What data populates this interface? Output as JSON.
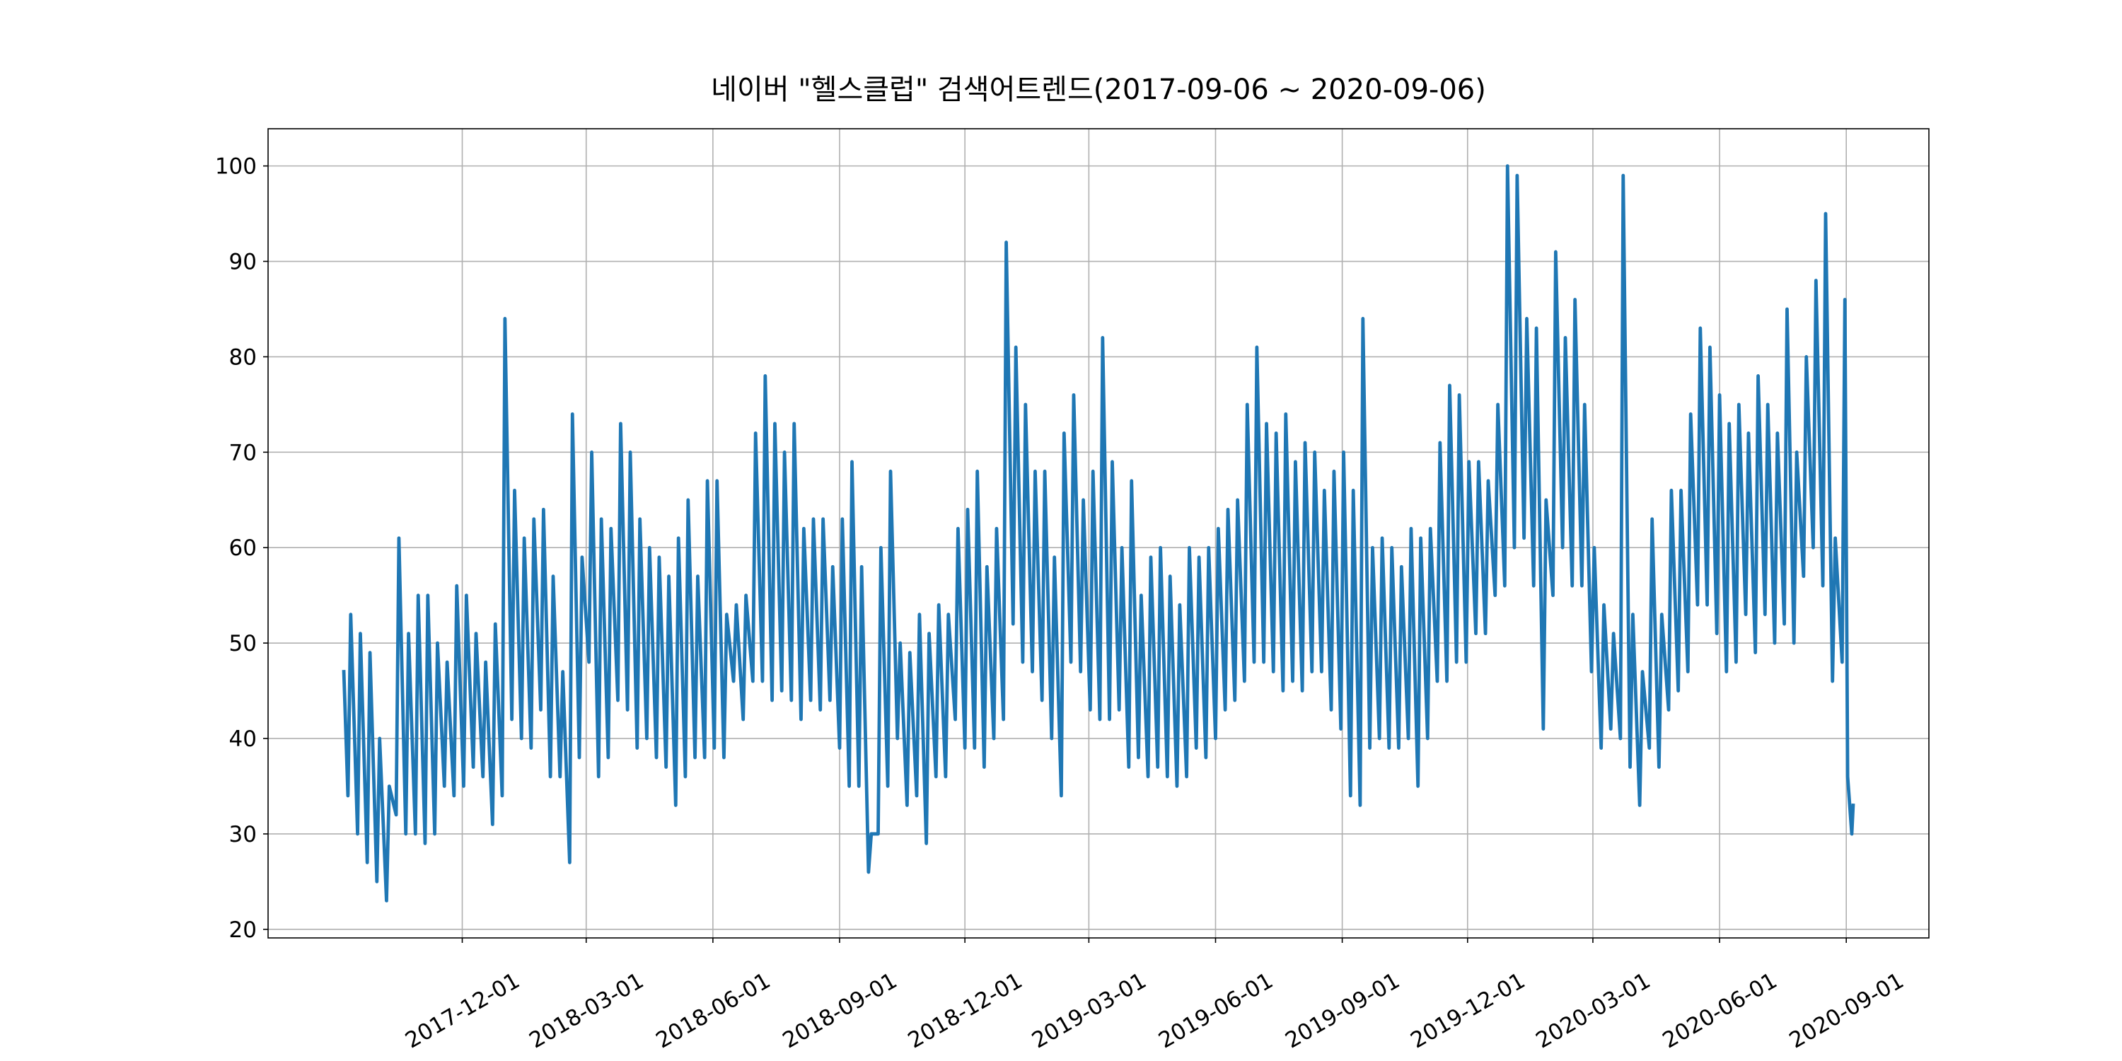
{
  "chart_data": {
    "type": "line",
    "title": "네이버 \"헬스클럽\" 검색어트렌드(2017-09-06 ~ 2020-09-06)",
    "x": [
      "2017-09-06",
      "2017-09-09",
      "2017-09-11",
      "2017-09-16",
      "2017-09-18",
      "2017-09-23",
      "2017-09-25",
      "2017-09-30",
      "2017-10-02",
      "2017-10-07",
      "2017-10-09",
      "2017-10-14",
      "2017-10-16",
      "2017-10-21",
      "2017-10-23",
      "2017-10-28",
      "2017-10-30",
      "2017-11-04",
      "2017-11-06",
      "2017-11-11",
      "2017-11-13",
      "2017-11-18",
      "2017-11-20",
      "2017-11-25",
      "2017-11-27",
      "2017-12-02",
      "2017-12-04",
      "2017-12-09",
      "2017-12-11",
      "2017-12-16",
      "2017-12-18",
      "2017-12-23",
      "2017-12-25",
      "2017-12-30",
      "2018-01-01",
      "2018-01-06",
      "2018-01-08",
      "2018-01-13",
      "2018-01-15",
      "2018-01-20",
      "2018-01-22",
      "2018-01-27",
      "2018-01-29",
      "2018-02-03",
      "2018-02-05",
      "2018-02-10",
      "2018-02-12",
      "2018-02-17",
      "2018-02-19",
      "2018-02-24",
      "2018-02-26",
      "2018-03-03",
      "2018-03-05",
      "2018-03-10",
      "2018-03-12",
      "2018-03-17",
      "2018-03-19",
      "2018-03-24",
      "2018-03-26",
      "2018-03-31",
      "2018-04-02",
      "2018-04-07",
      "2018-04-09",
      "2018-04-14",
      "2018-04-16",
      "2018-04-21",
      "2018-04-23",
      "2018-04-28",
      "2018-04-30",
      "2018-05-05",
      "2018-05-07",
      "2018-05-12",
      "2018-05-14",
      "2018-05-19",
      "2018-05-21",
      "2018-05-26",
      "2018-05-28",
      "2018-06-02",
      "2018-06-04",
      "2018-06-09",
      "2018-06-11",
      "2018-06-16",
      "2018-06-18",
      "2018-06-23",
      "2018-06-25",
      "2018-06-30",
      "2018-07-02",
      "2018-07-07",
      "2018-07-09",
      "2018-07-14",
      "2018-07-16",
      "2018-07-21",
      "2018-07-23",
      "2018-07-28",
      "2018-07-30",
      "2018-08-04",
      "2018-08-06",
      "2018-08-11",
      "2018-08-13",
      "2018-08-18",
      "2018-08-20",
      "2018-08-25",
      "2018-08-27",
      "2018-09-01",
      "2018-09-03",
      "2018-09-08",
      "2018-09-10",
      "2018-09-15",
      "2018-09-17",
      "2018-09-22",
      "2018-09-24",
      "2018-09-29",
      "2018-10-01",
      "2018-10-06",
      "2018-10-08",
      "2018-10-13",
      "2018-10-15",
      "2018-10-20",
      "2018-10-22",
      "2018-10-27",
      "2018-10-29",
      "2018-11-03",
      "2018-11-05",
      "2018-11-10",
      "2018-11-12",
      "2018-11-17",
      "2018-11-19",
      "2018-11-24",
      "2018-11-26",
      "2018-12-01",
      "2018-12-03",
      "2018-12-08",
      "2018-12-10",
      "2018-12-15",
      "2018-12-17",
      "2018-12-22",
      "2018-12-24",
      "2018-12-29",
      "2018-12-31",
      "2019-01-05",
      "2019-01-07",
      "2019-01-12",
      "2019-01-14",
      "2019-01-19",
      "2019-01-21",
      "2019-01-26",
      "2019-01-28",
      "2019-02-02",
      "2019-02-04",
      "2019-02-09",
      "2019-02-11",
      "2019-02-16",
      "2019-02-18",
      "2019-02-23",
      "2019-02-25",
      "2019-03-02",
      "2019-03-04",
      "2019-03-09",
      "2019-03-11",
      "2019-03-16",
      "2019-03-18",
      "2019-03-23",
      "2019-03-25",
      "2019-03-30",
      "2019-04-01",
      "2019-04-06",
      "2019-04-08",
      "2019-04-13",
      "2019-04-15",
      "2019-04-20",
      "2019-04-22",
      "2019-04-27",
      "2019-04-29",
      "2019-05-04",
      "2019-05-06",
      "2019-05-11",
      "2019-05-13",
      "2019-05-18",
      "2019-05-20",
      "2019-05-25",
      "2019-05-27",
      "2019-06-01",
      "2019-06-03",
      "2019-06-08",
      "2019-06-10",
      "2019-06-15",
      "2019-06-17",
      "2019-06-22",
      "2019-06-24",
      "2019-06-29",
      "2019-07-01",
      "2019-07-06",
      "2019-07-08",
      "2019-07-13",
      "2019-07-15",
      "2019-07-20",
      "2019-07-22",
      "2019-07-27",
      "2019-07-29",
      "2019-08-03",
      "2019-08-05",
      "2019-08-10",
      "2019-08-12",
      "2019-08-17",
      "2019-08-19",
      "2019-08-24",
      "2019-08-26",
      "2019-08-31",
      "2019-09-02",
      "2019-09-07",
      "2019-09-09",
      "2019-09-14",
      "2019-09-16",
      "2019-09-21",
      "2019-09-23",
      "2019-09-28",
      "2019-09-30",
      "2019-10-05",
      "2019-10-07",
      "2019-10-12",
      "2019-10-14",
      "2019-10-19",
      "2019-10-21",
      "2019-10-26",
      "2019-10-28",
      "2019-11-02",
      "2019-11-04",
      "2019-11-09",
      "2019-11-11",
      "2019-11-16",
      "2019-11-18",
      "2019-11-23",
      "2019-11-25",
      "2019-11-30",
      "2019-12-02",
      "2019-12-07",
      "2019-12-09",
      "2019-12-14",
      "2019-12-16",
      "2019-12-21",
      "2019-12-23",
      "2019-12-28",
      "2019-12-30",
      "2020-01-04",
      "2020-01-06",
      "2020-01-11",
      "2020-01-13",
      "2020-01-18",
      "2020-01-20",
      "2020-01-25",
      "2020-01-27",
      "2020-02-01",
      "2020-02-03",
      "2020-02-08",
      "2020-02-10",
      "2020-02-15",
      "2020-02-17",
      "2020-02-22",
      "2020-02-24",
      "2020-02-29",
      "2020-03-02",
      "2020-03-07",
      "2020-03-09",
      "2020-03-14",
      "2020-03-16",
      "2020-03-21",
      "2020-03-23",
      "2020-03-28",
      "2020-03-30",
      "2020-04-04",
      "2020-04-06",
      "2020-04-11",
      "2020-04-13",
      "2020-04-18",
      "2020-04-20",
      "2020-04-25",
      "2020-04-27",
      "2020-05-02",
      "2020-05-04",
      "2020-05-09",
      "2020-05-11",
      "2020-05-16",
      "2020-05-18",
      "2020-05-23",
      "2020-05-25",
      "2020-05-30",
      "2020-06-01",
      "2020-06-06",
      "2020-06-08",
      "2020-06-13",
      "2020-06-15",
      "2020-06-20",
      "2020-06-22",
      "2020-06-27",
      "2020-06-29",
      "2020-07-04",
      "2020-07-06",
      "2020-07-11",
      "2020-07-13",
      "2020-07-18",
      "2020-07-20",
      "2020-07-25",
      "2020-07-27",
      "2020-08-01",
      "2020-08-03",
      "2020-08-08",
      "2020-08-10",
      "2020-08-15",
      "2020-08-17",
      "2020-08-22",
      "2020-08-24",
      "2020-08-29",
      "2020-08-31",
      "2020-09-02",
      "2020-09-05",
      "2020-09-06"
    ],
    "values": [
      47,
      34,
      53,
      30,
      51,
      27,
      49,
      25,
      40,
      23,
      35,
      32,
      61,
      30,
      51,
      30,
      55,
      29,
      55,
      30,
      50,
      35,
      48,
      34,
      56,
      35,
      55,
      37,
      51,
      36,
      48,
      31,
      52,
      34,
      84,
      42,
      66,
      40,
      61,
      39,
      63,
      43,
      64,
      36,
      57,
      36,
      47,
      27,
      74,
      38,
      59,
      48,
      70,
      36,
      63,
      38,
      62,
      44,
      73,
      43,
      70,
      39,
      63,
      40,
      60,
      38,
      59,
      37,
      57,
      33,
      61,
      36,
      65,
      38,
      57,
      38,
      67,
      39,
      67,
      38,
      53,
      46,
      54,
      42,
      55,
      46,
      72,
      46,
      78,
      44,
      73,
      45,
      70,
      44,
      73,
      42,
      62,
      44,
      63,
      43,
      63,
      44,
      58,
      39,
      63,
      35,
      69,
      35,
      58,
      26,
      30,
      30,
      60,
      35,
      68,
      40,
      50,
      33,
      49,
      34,
      53,
      29,
      51,
      36,
      54,
      36,
      53,
      42,
      62,
      39,
      64,
      39,
      68,
      37,
      58,
      40,
      62,
      42,
      92,
      52,
      81,
      48,
      75,
      47,
      68,
      44,
      68,
      40,
      59,
      34,
      72,
      48,
      76,
      47,
      65,
      43,
      68,
      42,
      82,
      42,
      69,
      43,
      60,
      37,
      67,
      38,
      55,
      36,
      59,
      37,
      60,
      36,
      57,
      35,
      54,
      36,
      60,
      39,
      59,
      38,
      60,
      40,
      62,
      43,
      64,
      44,
      65,
      46,
      75,
      48,
      81,
      48,
      73,
      47,
      72,
      45,
      74,
      46,
      69,
      45,
      71,
      47,
      70,
      47,
      66,
      43,
      68,
      41,
      70,
      34,
      66,
      33,
      84,
      39,
      60,
      40,
      61,
      39,
      60,
      39,
      58,
      40,
      62,
      35,
      61,
      40,
      62,
      46,
      71,
      46,
      77,
      48,
      76,
      48,
      69,
      51,
      69,
      51,
      67,
      55,
      75,
      56,
      100,
      60,
      99,
      61,
      84,
      56,
      83,
      41,
      65,
      55,
      91,
      60,
      82,
      56,
      86,
      56,
      75,
      47,
      60,
      39,
      54,
      41,
      51,
      40,
      99,
      37,
      53,
      33,
      47,
      39,
      63,
      37,
      53,
      43,
      66,
      45,
      66,
      47,
      74,
      54,
      83,
      54,
      81,
      51,
      76,
      47,
      73,
      48,
      75,
      53,
      72,
      49,
      78,
      53,
      75,
      50,
      72,
      52,
      85,
      50,
      70,
      57,
      80,
      60,
      88,
      56,
      95,
      46,
      61,
      48,
      86,
      36,
      30,
      33
    ],
    "color": "#1f77b4",
    "xlim": [
      "2017-07-13",
      "2020-10-31"
    ],
    "xticks": [
      "2017-12-01",
      "2018-03-01",
      "2018-06-01",
      "2018-09-01",
      "2018-12-01",
      "2019-03-01",
      "2019-06-01",
      "2019-09-01",
      "2019-12-01",
      "2020-03-01",
      "2020-06-01",
      "2020-09-01"
    ],
    "ylim": [
      19.1,
      103.9
    ],
    "yticks": [
      20,
      30,
      40,
      50,
      60,
      70,
      80,
      90,
      100
    ],
    "grid": true
  }
}
